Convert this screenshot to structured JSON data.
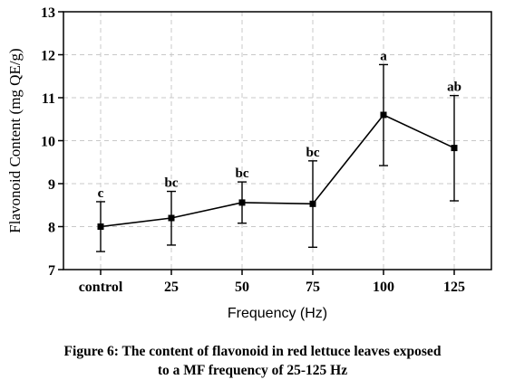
{
  "caption": {
    "line1": "Figure 6: The content of flavonoid in red lettuce leaves exposed",
    "line2": "to a MF frequency of 25-125 Hz"
  },
  "chart_data": {
    "type": "line",
    "categories": [
      "control",
      "25",
      "50",
      "75",
      "100",
      "125"
    ],
    "values": [
      8.0,
      8.2,
      8.56,
      8.53,
      10.6,
      9.83
    ],
    "error_low": [
      7.42,
      7.57,
      8.08,
      7.52,
      9.42,
      8.6
    ],
    "error_high": [
      8.58,
      8.82,
      9.04,
      9.53,
      11.77,
      11.05
    ],
    "significance": [
      "c",
      "bc",
      "bc",
      "bc",
      "a",
      "ab"
    ],
    "xlabel": "Frequency (Hz)",
    "ylabel": "Flavonoid Content (mg QE/g)",
    "ylim": [
      7,
      13
    ],
    "yticks": [
      7,
      8,
      9,
      10,
      11,
      12,
      13
    ],
    "grid": true,
    "color": "#000000"
  }
}
